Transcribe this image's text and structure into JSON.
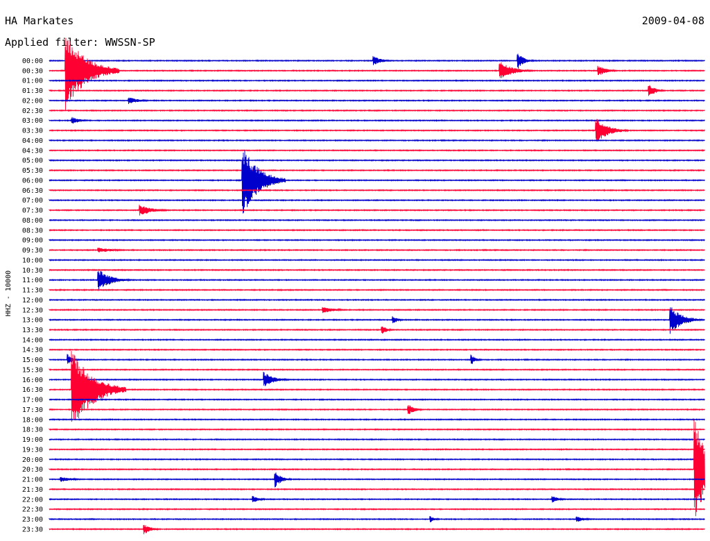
{
  "header": {
    "station": "HA Markates",
    "date": "2009-04-08",
    "filter": "Applied filter: WWSSN-SP"
  },
  "chart_data": {
    "type": "line",
    "title": "HA Markates",
    "subtitle": "Applied filter: WWSSN-SP",
    "date": "2009-04-08",
    "ylabel": "HHZ - 10000",
    "xlabel": "",
    "row_labels": [
      "00:00",
      "00:30",
      "01:00",
      "01:30",
      "02:00",
      "02:30",
      "03:00",
      "03:30",
      "04:00",
      "04:30",
      "05:00",
      "05:30",
      "06:00",
      "06:30",
      "07:00",
      "07:30",
      "08:00",
      "08:30",
      "09:00",
      "09:30",
      "10:00",
      "10:30",
      "11:00",
      "11:30",
      "12:00",
      "12:30",
      "13:00",
      "13:30",
      "14:00",
      "14:30",
      "15:00",
      "15:30",
      "16:00",
      "16:30",
      "17:00",
      "17:30",
      "18:00",
      "18:30",
      "19:00",
      "19:30",
      "20:00",
      "20:30",
      "21:00",
      "21:30",
      "22:00",
      "22:30",
      "23:00",
      "23:30"
    ],
    "row_minutes": 30,
    "trace_colors": [
      "#0000cc",
      "#ff0033"
    ],
    "grid": false,
    "legend": "none",
    "events": [
      {
        "row": 1,
        "minute": 0.7,
        "amplitude": 60,
        "duration": 2.5
      },
      {
        "row": 1,
        "minute": 20.6,
        "amplitude": 15,
        "duration": 1.5
      },
      {
        "row": 1,
        "minute": 25.1,
        "amplitude": 9,
        "duration": 1.0
      },
      {
        "row": 0,
        "minute": 14.8,
        "amplitude": 8,
        "duration": 1.0
      },
      {
        "row": 0,
        "minute": 21.4,
        "amplitude": 14,
        "duration": 0.8
      },
      {
        "row": 3,
        "minute": 27.4,
        "amplitude": 12,
        "duration": 0.8
      },
      {
        "row": 4,
        "minute": 3.6,
        "amplitude": 6,
        "duration": 1.2
      },
      {
        "row": 6,
        "minute": 1.0,
        "amplitude": 6,
        "duration": 1.0
      },
      {
        "row": 7,
        "minute": 25.0,
        "amplitude": 20,
        "duration": 1.5
      },
      {
        "row": 12,
        "minute": 8.8,
        "amplitude": 55,
        "duration": 2.0
      },
      {
        "row": 15,
        "minute": 4.1,
        "amplitude": 9,
        "duration": 1.5
      },
      {
        "row": 19,
        "minute": 2.2,
        "amplitude": 4,
        "duration": 2.0
      },
      {
        "row": 22,
        "minute": 2.2,
        "amplitude": 18,
        "duration": 1.5
      },
      {
        "row": 25,
        "minute": 12.5,
        "amplitude": 5,
        "duration": 1.5
      },
      {
        "row": 26,
        "minute": 15.7,
        "amplitude": 7,
        "duration": 0.6
      },
      {
        "row": 26,
        "minute": 28.4,
        "amplitude": 22,
        "duration": 1.5
      },
      {
        "row": 27,
        "minute": 15.2,
        "amplitude": 8,
        "duration": 0.6
      },
      {
        "row": 30,
        "minute": 0.8,
        "amplitude": 10,
        "duration": 0.6
      },
      {
        "row": 30,
        "minute": 19.3,
        "amplitude": 8,
        "duration": 0.6
      },
      {
        "row": 32,
        "minute": 9.8,
        "amplitude": 12,
        "duration": 1.2
      },
      {
        "row": 33,
        "minute": 1.0,
        "amplitude": 65,
        "duration": 2.5
      },
      {
        "row": 35,
        "minute": 16.4,
        "amplitude": 9,
        "duration": 0.8
      },
      {
        "row": 42,
        "minute": 10.3,
        "amplitude": 14,
        "duration": 0.8
      },
      {
        "row": 42,
        "minute": 0.5,
        "amplitude": 4,
        "duration": 1.5
      },
      {
        "row": 44,
        "minute": 9.3,
        "amplitude": 6,
        "duration": 0.8
      },
      {
        "row": 44,
        "minute": 23.0,
        "amplitude": 6,
        "duration": 0.8
      },
      {
        "row": 46,
        "minute": 17.4,
        "amplitude": 6,
        "duration": 0.6
      },
      {
        "row": 46,
        "minute": 24.1,
        "amplitude": 5,
        "duration": 1.0
      },
      {
        "row": 47,
        "minute": 4.3,
        "amplitude": 9,
        "duration": 0.8
      },
      {
        "row": 41,
        "minute": 29.5,
        "amplitude": 80,
        "duration": 2.0
      }
    ]
  }
}
